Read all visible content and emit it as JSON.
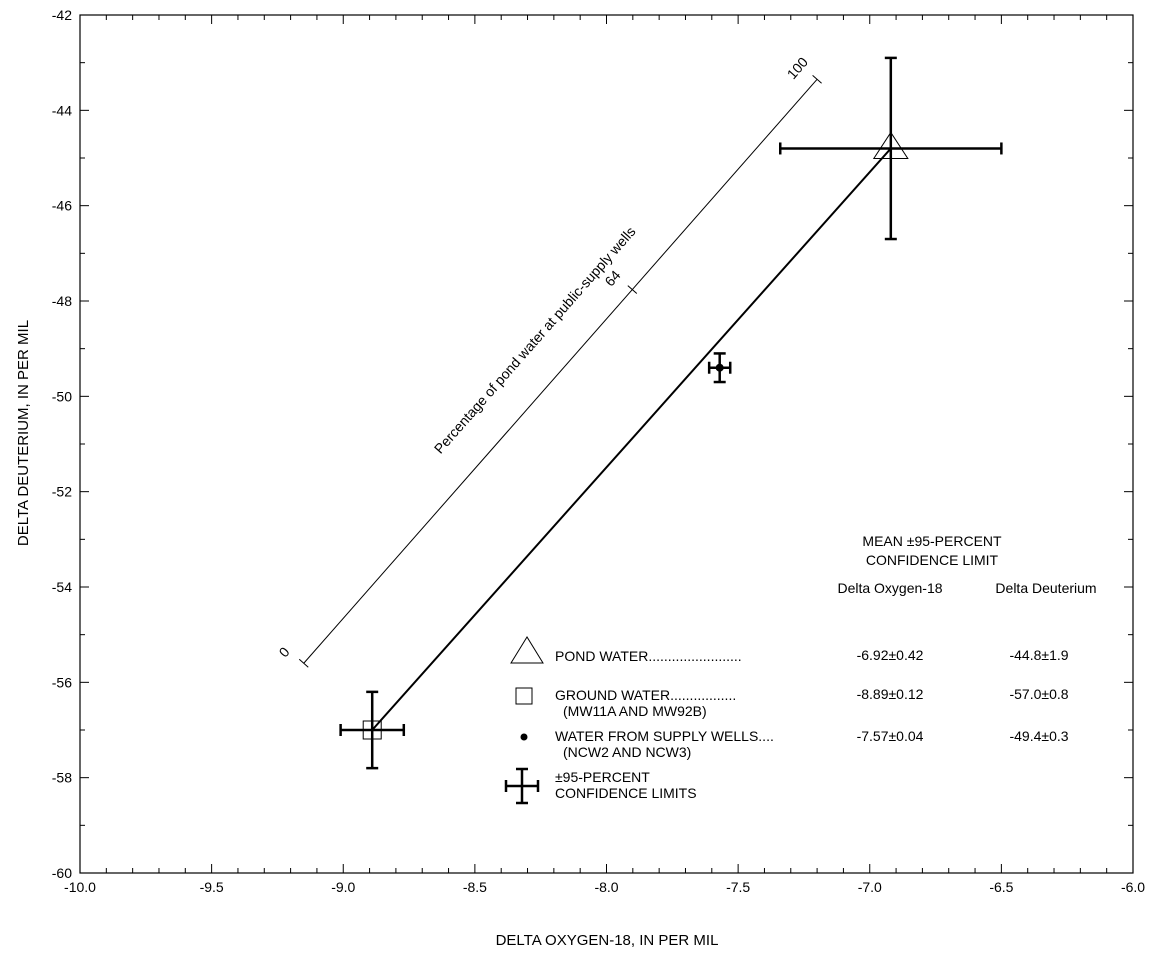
{
  "chart_data": {
    "type": "scatter",
    "xlabel": "DELTA OXYGEN-18, IN PER MIL",
    "ylabel": "DELTA DEUTERIUM, IN PER MIL",
    "xlim": [
      -10.0,
      -6.0
    ],
    "ylim": [
      -60,
      -42
    ],
    "x_ticks": [
      {
        "value": -10.0,
        "label": "-10.0"
      },
      {
        "value": -9.5,
        "label": "-9.5"
      },
      {
        "value": -9.0,
        "label": "-9.0"
      },
      {
        "value": -8.5,
        "label": "-8.5"
      },
      {
        "value": -8.0,
        "label": "-8.0"
      },
      {
        "value": -7.5,
        "label": "-7.5"
      },
      {
        "value": -7.0,
        "label": "-7.0"
      },
      {
        "value": -6.5,
        "label": "-6.5"
      },
      {
        "value": -6.0,
        "label": "-6.0"
      }
    ],
    "y_ticks": [
      {
        "value": -42,
        "label": "-42"
      },
      {
        "value": -44,
        "label": "-44"
      },
      {
        "value": -46,
        "label": "-46"
      },
      {
        "value": -48,
        "label": "-48"
      },
      {
        "value": -50,
        "label": "-50"
      },
      {
        "value": -52,
        "label": "-52"
      },
      {
        "value": -54,
        "label": "-54"
      },
      {
        "value": -56,
        "label": "-56"
      },
      {
        "value": -58,
        "label": "-58"
      },
      {
        "value": -60,
        "label": "-60"
      }
    ],
    "x_minor_step": 0.1,
    "y_minor_step": 1,
    "grid": false,
    "points": [
      {
        "id": "pond",
        "marker": "triangle",
        "x": -6.92,
        "y": -44.8,
        "x_err": 0.42,
        "y_err": 1.9
      },
      {
        "id": "ground",
        "marker": "square",
        "x": -8.89,
        "y": -57.0,
        "x_err": 0.12,
        "y_err": 0.8
      },
      {
        "id": "supply",
        "marker": "dot",
        "x": -7.57,
        "y": -49.4,
        "x_err": 0.04,
        "y_err": 0.3
      }
    ],
    "mixing_line": {
      "from": [
        -8.89,
        -57.0
      ],
      "to": [
        -6.92,
        -44.8
      ]
    },
    "percentage_scale": {
      "label": "Percentage of pond water at public-supply wells",
      "from": [
        -9.15,
        -55.6
      ],
      "to": [
        -7.2,
        -43.35
      ],
      "marks": [
        {
          "fraction": 0,
          "label": "0"
        },
        {
          "fraction": 0.64,
          "label": "64"
        },
        {
          "fraction": 1,
          "label": "100"
        }
      ]
    },
    "legend": {
      "position": "bottom-right",
      "header": [
        "MEAN ±95-PERCENT",
        "CONFIDENCE LIMIT"
      ],
      "col_o18": "Delta Oxygen-18",
      "col_dd": "Delta Deuterium",
      "entries": [
        {
          "marker": "triangle",
          "label": "POND WATER........................",
          "sub": "",
          "o18": "-6.92±0.42",
          "dd": "-44.8±1.9"
        },
        {
          "marker": "square",
          "label": "GROUND WATER.................",
          "sub": "(MW11A AND MW92B)",
          "o18": "-8.89±0.12",
          "dd": "-57.0±0.8"
        },
        {
          "marker": "dot",
          "label": "WATER FROM SUPPLY WELLS....",
          "sub": "(NCW2 AND NCW3)",
          "o18": "-7.57±0.04",
          "dd": "-49.4±0.3"
        }
      ],
      "errorbar_entry": [
        "±95-PERCENT",
        "CONFIDENCE LIMITS"
      ]
    }
  }
}
